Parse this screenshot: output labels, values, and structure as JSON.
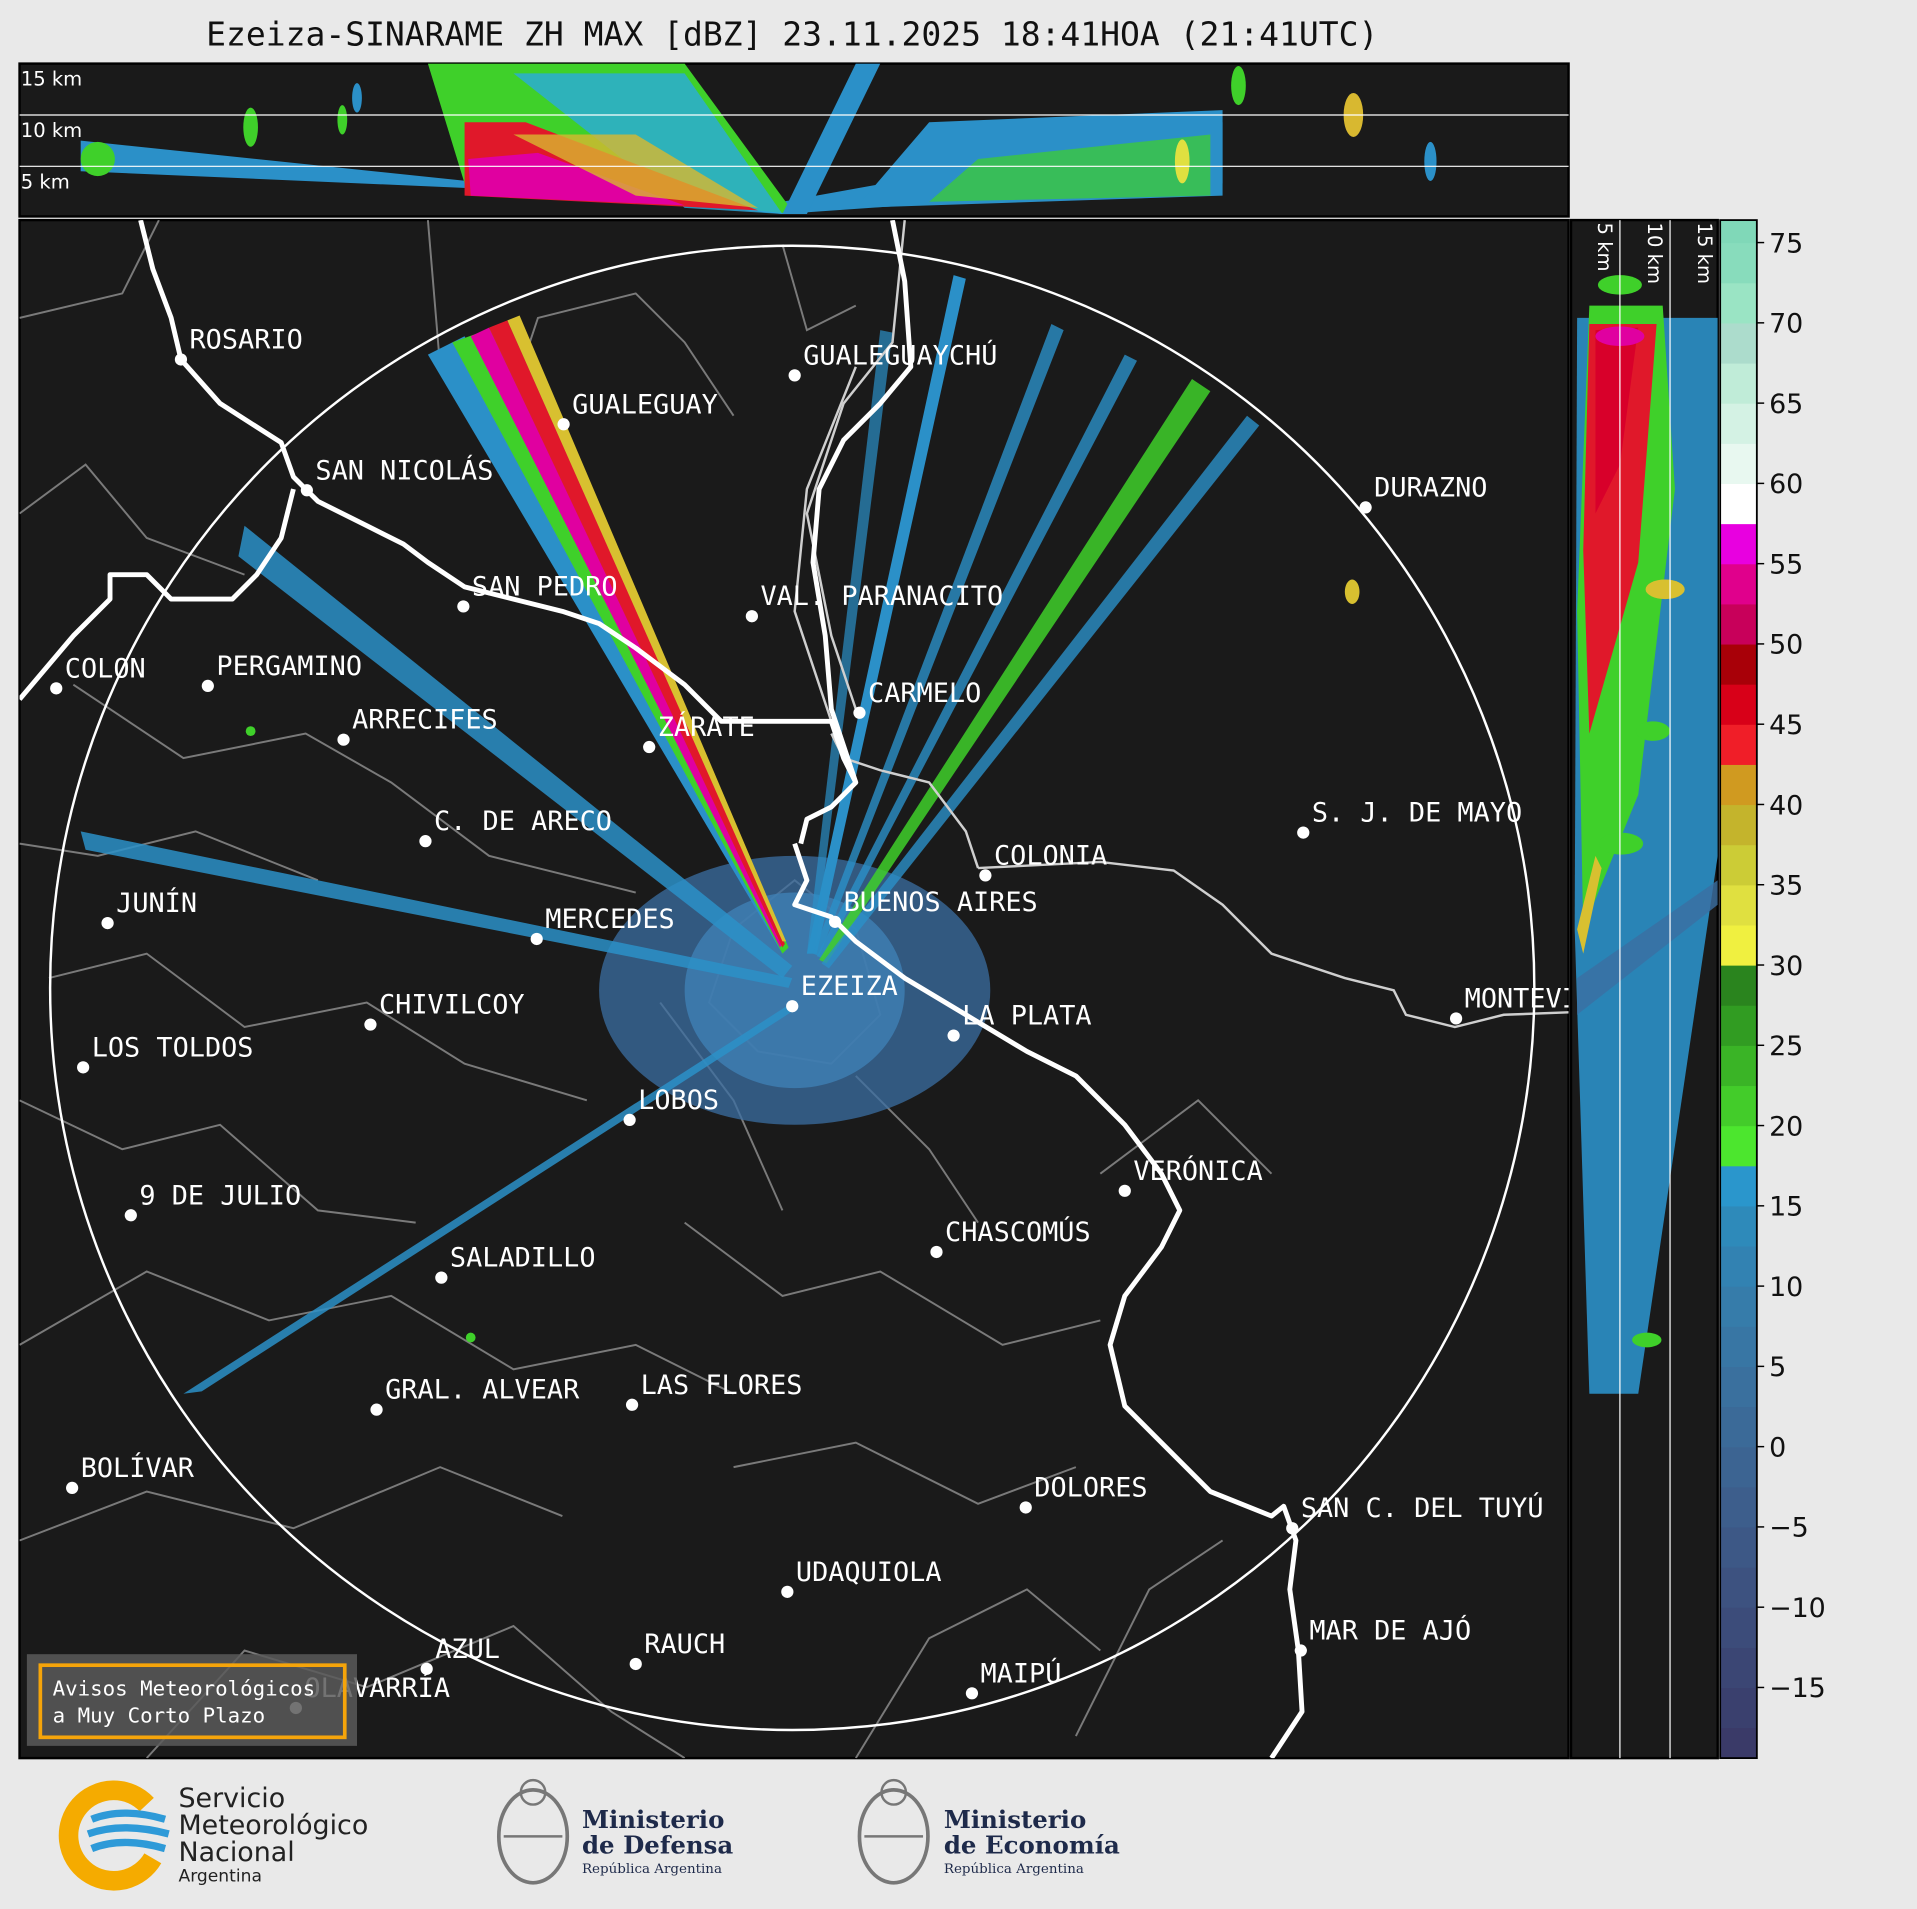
{
  "title": "Ezeiza-SINARAME ZH MAX [dBZ] 23.11.2025 18:41HOA (21:41UTC)",
  "vertical_section": {
    "height_labels": [
      "15 km",
      "10 km",
      "5 km"
    ]
  },
  "side_section": {
    "height_labels": [
      "5 km",
      "10 km",
      "15 km"
    ]
  },
  "cities": [
    "ROSARIO",
    "GUALEGUAYCHÚ",
    "GUALEGUAY",
    "SAN NICOLÁS",
    "DURAZNO",
    "SAN PEDRO",
    "VAL. PARANACITO",
    "COLON",
    "PERGAMINO",
    "CARMELO",
    "ARRECIFES",
    "ZÁRATE",
    "S. J. DE MAYO",
    "C. DE ARECO",
    "COLONIA",
    "BUENOS AIRES",
    "JUNÍN",
    "MERCEDES",
    "EZEIZA",
    "MONTEVIDEO",
    "LA PLATA",
    "CHIVILCOY",
    "LOS TOLDOS",
    "LOBOS",
    "VERÓNICA",
    "9 DE JULIO",
    "CHASCOMÚS",
    "SALADILLO",
    "GRAL. ALVEAR",
    "LAS FLORES",
    "BOLÍVAR",
    "DOLORES",
    "SAN C. DEL TUYÚ",
    "UDAQUIOLA",
    "MAR DE AJÓ",
    "AZUL",
    "RAUCH",
    "OLAVARRÍA",
    "MAIPÚ"
  ],
  "colorbar": {
    "ylim": [
      -19.4,
      76.4
    ],
    "ticks": [
      {
        "value": -15,
        "label": "−15"
      },
      {
        "value": -10,
        "label": "−10"
      },
      {
        "value": -5,
        "label": "−5"
      },
      0,
      5,
      10,
      15,
      20,
      25,
      30,
      35,
      40,
      45,
      50,
      55,
      60,
      65,
      70,
      75
    ]
  },
  "alert_box": {
    "lines": [
      "Avisos Meteorológicos",
      "a Muy Corto Plazo"
    ]
  },
  "logos": {
    "smn": [
      "Servicio",
      "Meteorológico",
      "Nacional",
      "Argentina"
    ],
    "defensa": [
      "Ministerio",
      "de Defensa",
      "República Argentina"
    ],
    "economia": [
      "Ministerio",
      "de Economía",
      "República Argentina"
    ]
  }
}
